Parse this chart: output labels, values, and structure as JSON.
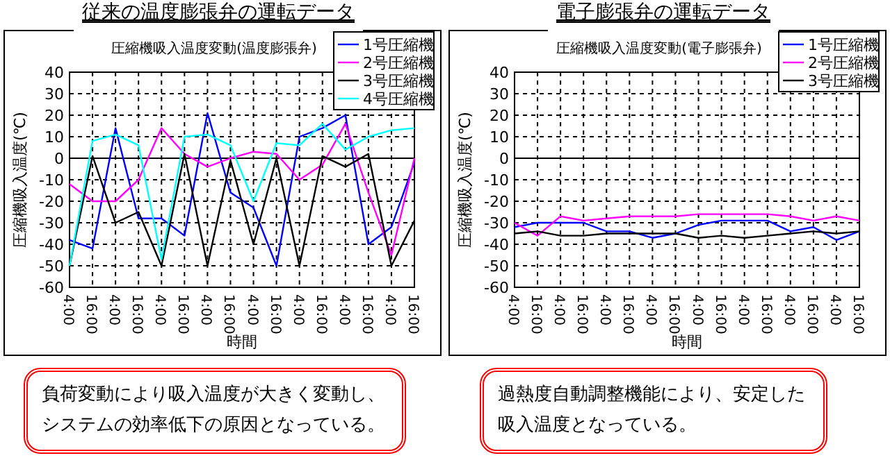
{
  "chart_data": [
    {
      "type": "line",
      "title": "従来の温度膨張弁の運転データ",
      "subtitle": "圧縮機吸入温度変動(温度膨張弁)",
      "xlabel": "時間",
      "ylabel": "圧縮機吸入温度(℃)",
      "categories": [
        "4:00",
        "16:00",
        "4:00",
        "16:00",
        "4:00",
        "16:00",
        "4:00",
        "16:00",
        "4:00",
        "16:00",
        "4:00",
        "16:00",
        "4:00",
        "16:00",
        "4:00",
        "16:00"
      ],
      "series": [
        {
          "name": "1号圧縮機",
          "color": "#0000ff",
          "values": [
            -38,
            -42,
            14,
            -28,
            -28,
            -36,
            21,
            -16,
            -23,
            -50,
            10,
            14,
            20,
            -40,
            -32,
            -2
          ]
        },
        {
          "name": "2号圧縮機",
          "color": "#ff00ff",
          "values": [
            -12,
            -20,
            -20,
            -10,
            14,
            2,
            -4,
            0,
            3,
            2,
            -10,
            -3,
            16,
            -16,
            -45,
            0
          ]
        },
        {
          "name": "3号圧縮機",
          "color": "#000000",
          "values": [
            -50,
            1,
            -30,
            -25,
            -50,
            2,
            -50,
            -1,
            -40,
            0,
            -50,
            1,
            -4,
            2,
            -50,
            -29
          ]
        },
        {
          "name": "4号圧縮機",
          "color": "#00ffff",
          "values": [
            -50,
            8,
            11,
            6,
            -47,
            10,
            11,
            6,
            -20,
            7,
            6,
            16,
            4,
            10,
            13,
            14
          ]
        }
      ],
      "ylim": [
        -60,
        40
      ],
      "yticks": [
        -60,
        -50,
        -40,
        -30,
        -20,
        -10,
        0,
        10,
        20,
        30,
        40
      ],
      "grid": true,
      "legend": "top right",
      "marker": "none",
      "annotations": [
        "負荷変動により吸入温度が大きく変動し、システムの効率低下の原因となっている。"
      ]
    },
    {
      "type": "line",
      "title": "電子膨張弁の運転データ",
      "subtitle": "圧縮機吸入温度変動(電子膨張弁)",
      "xlabel": "時間",
      "ylabel": "圧縮機吸入温度(℃)",
      "categories": [
        "4:00",
        "16:00",
        "4:00",
        "16:00",
        "4:00",
        "16:00",
        "4:00",
        "16:00",
        "4:00",
        "16:00",
        "4:00",
        "16:00",
        "4:00",
        "16:00",
        "4:00",
        "16:00"
      ],
      "series": [
        {
          "name": "1号圧縮機",
          "color": "#0000ff",
          "values": [
            -32,
            -30,
            -30,
            -30,
            -34,
            -34,
            -37,
            -35,
            -31,
            -29,
            -29,
            -29,
            -34,
            -32,
            -38,
            -34
          ]
        },
        {
          "name": "2号圧縮機",
          "color": "#ff00ff",
          "values": [
            -30,
            -36,
            -27,
            -29,
            -28,
            -27,
            -27,
            -27,
            -26,
            -26,
            -26,
            -26,
            -27,
            -29,
            -27,
            -29
          ]
        },
        {
          "name": "3号圧縮機",
          "color": "#000000",
          "values": [
            -35,
            -34,
            -36,
            -36,
            -35,
            -35,
            -35,
            -35,
            -37,
            -36,
            -37,
            -36,
            -35,
            -34,
            -35,
            -34
          ]
        }
      ],
      "ylim": [
        -60,
        40
      ],
      "yticks": [
        -60,
        -50,
        -40,
        -30,
        -20,
        -10,
        0,
        10,
        20,
        30,
        40
      ],
      "grid": true,
      "legend": "top right",
      "marker": "none",
      "annotations": [
        "過熱度自動調整機能により、安定した吸入温度となっている。"
      ]
    }
  ]
}
